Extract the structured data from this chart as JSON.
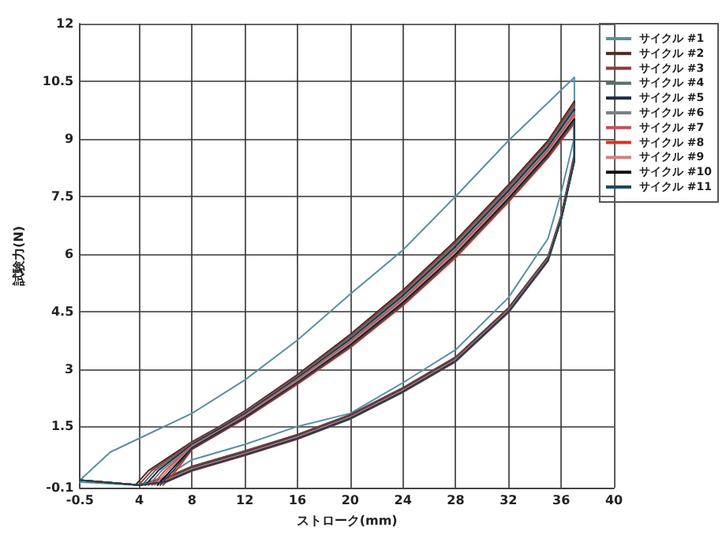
{
  "chart_data": {
    "type": "line",
    "xlabel": "ストローク(mm)",
    "ylabel": "試験力(N)",
    "xlim": [
      -0.5,
      40
    ],
    "xticks": [
      -0.5,
      4,
      8,
      12,
      16,
      20,
      24,
      28,
      32,
      36,
      40
    ],
    "ylim": [
      -0.1,
      12
    ],
    "yticks": [
      -0.1,
      1.5,
      3,
      4.5,
      6,
      7.5,
      9,
      10.5,
      12
    ],
    "grid": true,
    "legend": "top right",
    "marker": "none",
    "line_style": "solid",
    "series": [
      {
        "name": "サイクル #1",
        "color": "#5b8fa0",
        "x": [
          -0.5,
          1.8,
          4,
          8,
          12,
          16,
          20,
          24,
          28,
          32,
          37,
          37,
          36,
          35,
          32,
          28,
          24,
          20,
          16,
          12,
          8,
          6,
          4,
          -0.5
        ],
        "values": [
          0.1,
          0.83,
          1.19,
          1.84,
          2.71,
          3.75,
          4.95,
          6.1,
          7.5,
          8.95,
          10.6,
          9.04,
          7.6,
          6.4,
          4.86,
          3.5,
          2.64,
          1.84,
          1.5,
          1.03,
          0.63,
          0.2,
          -0.03,
          0.05
        ]
      },
      {
        "name": "サイクル #2",
        "color": "#4a2a20",
        "x": [
          3.7,
          4.7,
          8,
          10,
          12,
          16,
          20,
          24,
          28,
          32,
          35,
          37,
          37,
          36,
          35,
          32,
          28,
          24,
          20,
          16,
          12,
          8,
          6,
          4,
          -0.5
        ],
        "values": [
          -0.03,
          0.35,
          1.1,
          1.48,
          1.9,
          2.85,
          3.9,
          5.05,
          6.35,
          7.8,
          8.95,
          9.98,
          8.6,
          7.01,
          5.93,
          4.59,
          3.31,
          2.51,
          1.81,
          1.29,
          0.86,
          0.46,
          0.16,
          -0.03,
          0.1
        ]
      },
      {
        "name": "サイクル #3",
        "color": "#8a3a40",
        "x": [
          3.95,
          4.95,
          8,
          10,
          12,
          16,
          20,
          24,
          28,
          32,
          35,
          37,
          37,
          36,
          35,
          32,
          28,
          24,
          20,
          16,
          12,
          8,
          6,
          4,
          -0.5
        ],
        "values": [
          -0.03,
          0.35,
          1.08,
          1.46,
          1.88,
          2.82,
          3.86,
          5.0,
          6.3,
          7.75,
          8.9,
          9.91,
          8.58,
          7.0,
          5.92,
          4.58,
          3.3,
          2.5,
          1.8,
          1.28,
          0.85,
          0.45,
          0.15,
          -0.03,
          0.1
        ]
      },
      {
        "name": "サイクル #4",
        "color": "#5a6e68",
        "x": [
          4.2,
          5.2,
          8,
          10,
          12,
          16,
          20,
          24,
          28,
          32,
          35,
          37,
          37,
          36,
          35,
          32,
          28,
          24,
          20,
          16,
          12,
          8,
          6,
          4,
          -0.5
        ],
        "values": [
          -0.03,
          0.35,
          1.05,
          1.44,
          1.85,
          2.79,
          3.82,
          4.95,
          6.24,
          7.69,
          8.84,
          9.84,
          8.55,
          6.98,
          5.9,
          4.56,
          3.28,
          2.48,
          1.78,
          1.26,
          0.83,
          0.43,
          0.13,
          -0.03,
          0.1
        ]
      },
      {
        "name": "サイクル #5",
        "color": "#1e2a40",
        "x": [
          4.45,
          5.45,
          8,
          10,
          12,
          16,
          20,
          24,
          28,
          32,
          35,
          37,
          37,
          36,
          35,
          32,
          28,
          24,
          20,
          16,
          12,
          8,
          6,
          4,
          -0.5
        ],
        "values": [
          -0.03,
          0.35,
          1.03,
          1.42,
          1.83,
          2.76,
          3.77,
          4.91,
          6.19,
          7.64,
          8.79,
          9.77,
          8.53,
          6.97,
          5.89,
          4.55,
          3.27,
          2.47,
          1.77,
          1.25,
          0.82,
          0.42,
          0.12,
          -0.03,
          0.1
        ]
      },
      {
        "name": "サイクル #6",
        "color": "#7a8080",
        "x": [
          4.7,
          5.7,
          8,
          10,
          12,
          16,
          20,
          24,
          28,
          32,
          35,
          37,
          37,
          36,
          35,
          32,
          28,
          24,
          20,
          16,
          12,
          8,
          6,
          4,
          -0.5
        ],
        "values": [
          -0.03,
          0.35,
          1.0,
          1.39,
          1.8,
          2.73,
          3.73,
          4.86,
          6.13,
          7.58,
          8.73,
          9.7,
          8.5,
          6.95,
          5.87,
          4.53,
          3.25,
          2.45,
          1.75,
          1.23,
          0.8,
          0.4,
          0.1,
          -0.03,
          0.1
        ]
      },
      {
        "name": "サイクル #7",
        "color": "#c05060",
        "x": [
          4.96,
          5.96,
          8,
          10,
          12,
          16,
          20,
          24,
          28,
          32,
          35,
          37,
          37,
          36,
          35,
          32,
          28,
          24,
          20,
          16,
          12,
          8,
          6,
          4,
          -0.5
        ],
        "values": [
          -0.03,
          0.35,
          0.98,
          1.37,
          1.78,
          2.7,
          3.69,
          4.81,
          6.08,
          7.53,
          8.68,
          9.63,
          8.48,
          6.94,
          5.86,
          4.52,
          3.24,
          2.44,
          1.74,
          1.22,
          0.79,
          0.39,
          0.09,
          -0.03,
          0.1
        ]
      },
      {
        "name": "サイクル #8",
        "color": "#e03020",
        "x": [
          5.8,
          6.8,
          8,
          10,
          12,
          16,
          20,
          24,
          28,
          32,
          35,
          37,
          37,
          36,
          35,
          32,
          28,
          24,
          20,
          16,
          12,
          8,
          6,
          4,
          -0.5
        ],
        "values": [
          -0.03,
          0.35,
          0.9,
          1.3,
          1.7,
          2.6,
          3.55,
          4.65,
          5.9,
          7.35,
          8.5,
          9.4,
          8.4,
          6.89,
          5.81,
          4.47,
          3.19,
          2.39,
          1.69,
          1.17,
          0.74,
          0.34,
          0.04,
          -0.03,
          0.1
        ]
      },
      {
        "name": "サイクル #9",
        "color": "#d08080",
        "x": [
          5.17,
          6.17,
          8,
          10,
          12,
          16,
          20,
          24,
          28,
          32,
          35,
          37,
          37,
          36,
          35,
          32,
          28,
          24,
          20,
          16,
          12,
          8,
          6,
          4,
          -0.5
        ],
        "values": [
          -0.03,
          0.35,
          0.96,
          1.35,
          1.76,
          2.68,
          3.66,
          4.77,
          6.04,
          7.49,
          8.64,
          9.57,
          8.46,
          6.93,
          5.85,
          4.51,
          3.23,
          2.43,
          1.73,
          1.21,
          0.78,
          0.38,
          0.08,
          -0.03,
          0.1
        ]
      },
      {
        "name": "サイクル #10",
        "color": "#101010",
        "x": [
          5.38,
          6.38,
          8,
          10,
          12,
          16,
          20,
          24,
          28,
          32,
          35,
          37,
          37,
          36,
          35,
          32,
          28,
          24,
          20,
          16,
          12,
          8,
          6,
          4,
          -0.5
        ],
        "values": [
          -0.03,
          0.35,
          0.94,
          1.34,
          1.74,
          2.65,
          3.62,
          4.73,
          5.99,
          7.44,
          8.59,
          9.52,
          8.44,
          6.91,
          5.83,
          4.49,
          3.21,
          2.41,
          1.71,
          1.19,
          0.76,
          0.36,
          0.06,
          -0.03,
          0.1
        ]
      },
      {
        "name": "サイクル #11",
        "color": "#1e4a5a",
        "x": [
          5.59,
          6.59,
          8,
          10,
          12,
          16,
          20,
          24,
          28,
          32,
          35,
          37,
          37,
          36,
          35,
          32,
          28,
          24,
          20,
          16,
          12,
          8,
          6,
          4,
          -0.5
        ],
        "values": [
          -0.03,
          0.35,
          0.92,
          1.32,
          1.72,
          2.63,
          3.59,
          4.69,
          5.95,
          7.4,
          8.55,
          9.46,
          8.42,
          6.9,
          5.82,
          4.48,
          3.2,
          2.4,
          1.7,
          1.18,
          0.75,
          0.35,
          0.05,
          -0.03,
          0.1
        ]
      }
    ]
  }
}
